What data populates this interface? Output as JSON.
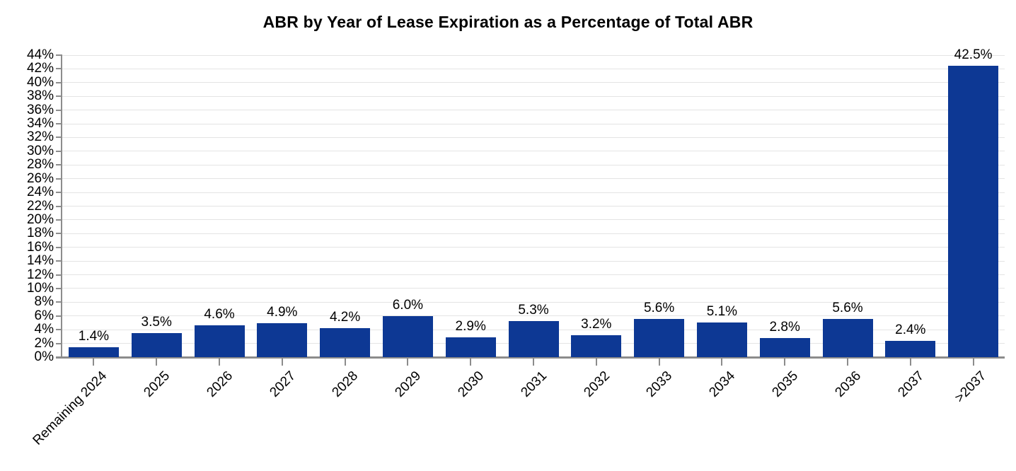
{
  "chart_data": {
    "type": "bar",
    "title": "ABR by Year of Lease Expiration as a Percentage of Total ABR",
    "categories": [
      "Remaining 2024",
      "2025",
      "2026",
      "2027",
      "2028",
      "2029",
      "2030",
      "2031",
      "2032",
      "2033",
      "2034",
      "2035",
      "2036",
      "2037",
      ">2037"
    ],
    "values": [
      1.4,
      3.5,
      4.6,
      4.9,
      4.2,
      6.0,
      2.9,
      5.3,
      3.2,
      5.6,
      5.1,
      2.8,
      5.6,
      2.4,
      42.5
    ],
    "bar_labels": [
      "1.4%",
      "3.5%",
      "4.6%",
      "4.9%",
      "4.2%",
      "6.0%",
      "2.9%",
      "5.3%",
      "3.2%",
      "5.6%",
      "5.1%",
      "2.8%",
      "5.6%",
      "2.4%",
      "42.5%"
    ],
    "y_ticks": [
      "0%",
      "2%",
      "4%",
      "6%",
      "8%",
      "10%",
      "12%",
      "14%",
      "16%",
      "18%",
      "20%",
      "22%",
      "24%",
      "26%",
      "28%",
      "30%",
      "32%",
      "34%",
      "36%",
      "38%",
      "40%",
      "42%",
      "44%"
    ],
    "ylim": [
      0,
      44
    ],
    "y_step": 2,
    "xlabel": "",
    "ylabel": "",
    "grid": true,
    "legend": false,
    "x_label_rotation_deg": -45,
    "colors": {
      "bar": "#0D3894",
      "gridline": "#E4E4E4",
      "axis": "#8C8C8C",
      "text": "#000000",
      "background": "#FFFFFF"
    }
  }
}
